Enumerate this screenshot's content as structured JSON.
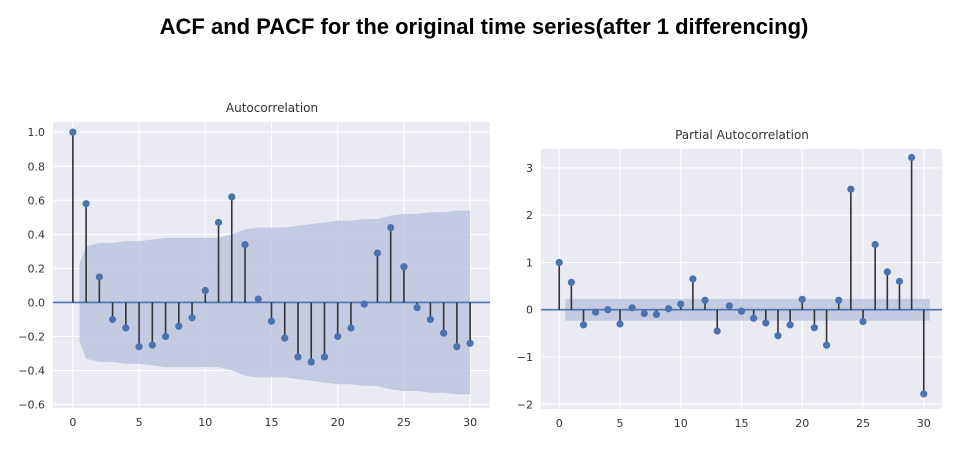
{
  "main_title": "ACF and PACF for the original time series(after 1 differencing)",
  "colors": {
    "background": "#eaeaf2",
    "grid": "#ffffff",
    "marker": "#4c72b0",
    "stem": "#333333",
    "confidence": "#b5bfdc",
    "zero_line": "#4c72b0"
  },
  "chart_data": [
    {
      "type": "stem",
      "title": "Autocorrelation",
      "xlabel": "",
      "ylabel": "",
      "xlim": [
        -1.5,
        31.5
      ],
      "ylim": [
        -0.62,
        1.06
      ],
      "xticks": [
        0,
        5,
        10,
        15,
        20,
        25,
        30
      ],
      "xtick_labels": [
        "0",
        "5",
        "10",
        "15",
        "20",
        "25",
        "30"
      ],
      "yticks": [
        1.0,
        0.8,
        0.6,
        0.4,
        0.2,
        0.0,
        -0.2,
        -0.4,
        -0.6
      ],
      "ytick_labels": [
        "1.0",
        "0.8",
        "0.6",
        "0.4",
        "0.2",
        "0.0",
        "−0.2",
        "−0.4",
        "−0.6"
      ],
      "grid": true,
      "x": [
        0,
        1,
        2,
        3,
        4,
        5,
        6,
        7,
        8,
        9,
        10,
        11,
        12,
        13,
        14,
        15,
        16,
        17,
        18,
        19,
        20,
        21,
        22,
        23,
        24,
        25,
        26,
        27,
        28,
        29,
        30
      ],
      "values": [
        1.0,
        0.58,
        0.15,
        -0.1,
        -0.15,
        -0.26,
        -0.25,
        -0.2,
        -0.14,
        -0.09,
        0.07,
        0.47,
        0.62,
        0.34,
        0.02,
        -0.11,
        -0.21,
        -0.32,
        -0.35,
        -0.32,
        -0.2,
        -0.15,
        -0.01,
        0.29,
        0.44,
        0.21,
        -0.03,
        -0.1,
        -0.18,
        -0.26,
        -0.24
      ],
      "confidence_band": {
        "x": [
          0.5,
          1,
          2,
          3,
          4,
          5,
          6,
          7,
          8,
          9,
          10,
          11,
          12,
          13,
          14,
          15,
          16,
          17,
          18,
          19,
          20,
          21,
          22,
          23,
          24,
          25,
          26,
          27,
          28,
          29,
          30
        ],
        "upper": [
          0.23,
          0.33,
          0.35,
          0.35,
          0.36,
          0.36,
          0.37,
          0.38,
          0.38,
          0.38,
          0.38,
          0.38,
          0.4,
          0.43,
          0.44,
          0.44,
          0.44,
          0.45,
          0.46,
          0.47,
          0.48,
          0.48,
          0.49,
          0.49,
          0.51,
          0.52,
          0.52,
          0.53,
          0.53,
          0.54,
          0.54
        ],
        "lower": [
          -0.23,
          -0.33,
          -0.35,
          -0.35,
          -0.36,
          -0.36,
          -0.37,
          -0.38,
          -0.38,
          -0.38,
          -0.38,
          -0.38,
          -0.4,
          -0.43,
          -0.44,
          -0.44,
          -0.44,
          -0.45,
          -0.46,
          -0.47,
          -0.48,
          -0.48,
          -0.49,
          -0.49,
          -0.51,
          -0.52,
          -0.52,
          -0.53,
          -0.53,
          -0.54,
          -0.54
        ]
      }
    },
    {
      "type": "stem",
      "title": "Partial Autocorrelation",
      "xlabel": "",
      "ylabel": "",
      "xlim": [
        -1.5,
        31.5
      ],
      "ylim": [
        -2.1,
        3.4
      ],
      "xticks": [
        0,
        5,
        10,
        15,
        20,
        25,
        30
      ],
      "xtick_labels": [
        "0",
        "5",
        "10",
        "15",
        "20",
        "25",
        "30"
      ],
      "yticks": [
        3,
        2,
        1,
        0,
        -1,
        -2
      ],
      "ytick_labels": [
        "3",
        "2",
        "1",
        "0",
        "−1",
        "−2"
      ],
      "grid": true,
      "x": [
        0,
        1,
        2,
        3,
        4,
        5,
        6,
        7,
        8,
        9,
        10,
        11,
        12,
        13,
        14,
        15,
        16,
        17,
        18,
        19,
        20,
        21,
        22,
        23,
        24,
        25,
        26,
        27,
        28,
        29,
        30
      ],
      "values": [
        1.0,
        0.58,
        -0.32,
        -0.05,
        0.0,
        -0.3,
        0.04,
        -0.08,
        -0.1,
        0.02,
        0.12,
        0.65,
        0.2,
        -0.45,
        0.08,
        -0.03,
        -0.18,
        -0.28,
        -0.55,
        -0.32,
        0.22,
        -0.38,
        -0.75,
        0.2,
        2.55,
        -0.25,
        1.38,
        0.8,
        0.6,
        3.22,
        -1.78
      ],
      "confidence_band": {
        "x": [
          0.5,
          30.5
        ],
        "upper": [
          0.23,
          0.23
        ],
        "lower": [
          -0.23,
          -0.23
        ]
      }
    }
  ]
}
